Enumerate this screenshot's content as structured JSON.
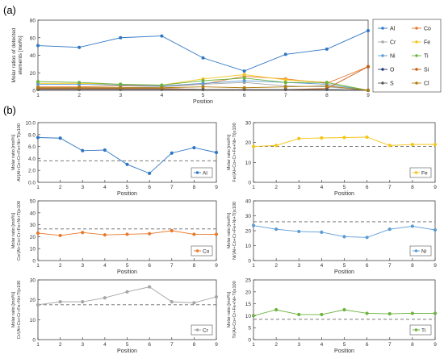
{
  "figure": {
    "panel_a_label": "(a)",
    "panel_b_label": "(b)"
  },
  "colors": {
    "Al": "#2f76c4",
    "Co": "#e8782b",
    "Cr": "#a6a6a6",
    "Fe": "#f5c518",
    "Ni": "#5b9bd5",
    "Ti": "#6cb33f",
    "O": "#1f3c6e",
    "Si": "#c55a11",
    "S": "#595959",
    "Cl": "#b07d10"
  },
  "chart_data": [
    {
      "type": "line",
      "panel": "a",
      "ylabel": "Molar ratios of detected elements [mol%]",
      "xlabel": "Position",
      "x": [
        1,
        2,
        3,
        4,
        5,
        6,
        7,
        8,
        9
      ],
      "xlim": [
        1,
        9
      ],
      "ylim": [
        0,
        80
      ],
      "yticks": [
        "0",
        "20",
        "40",
        "60",
        "80"
      ],
      "grid": false,
      "legend_position": "right",
      "series": [
        {
          "name": "Al",
          "key": "Al",
          "values": [
            51,
            49,
            60,
            62,
            37,
            22,
            41,
            47,
            68
          ]
        },
        {
          "name": "Co",
          "key": "Co",
          "values": [
            4,
            4,
            5,
            5,
            7,
            16,
            13,
            8,
            27
          ]
        },
        {
          "name": "Cr",
          "key": "Cr",
          "values": [
            3,
            3,
            3,
            4,
            7,
            9,
            5,
            4,
            0
          ]
        },
        {
          "name": "Fe",
          "key": "Fe",
          "values": [
            8,
            8,
            7,
            6,
            13,
            18,
            12,
            9,
            0
          ]
        },
        {
          "name": "Ni",
          "key": "Ni",
          "values": [
            7,
            7,
            6,
            5,
            8,
            11,
            9,
            7,
            0
          ]
        },
        {
          "name": "Ti",
          "key": "Ti",
          "values": [
            10,
            9,
            7,
            6,
            11,
            14,
            9,
            9,
            0
          ]
        },
        {
          "name": "O",
          "key": "O",
          "values": [
            2,
            2,
            2,
            2,
            1,
            1,
            1,
            1,
            0
          ]
        },
        {
          "name": "Si",
          "key": "Si",
          "values": [
            2,
            2,
            2,
            2,
            1,
            1,
            1,
            2,
            27
          ]
        },
        {
          "name": "S",
          "key": "S",
          "values": [
            1,
            1,
            1,
            1,
            1,
            1,
            1,
            1,
            0
          ]
        },
        {
          "name": "Cl",
          "key": "Cl",
          "values": [
            3,
            3,
            3,
            3,
            4,
            3,
            4,
            5,
            0
          ]
        }
      ]
    },
    {
      "type": "line",
      "panel": "b",
      "element": "Al",
      "key": "Al",
      "ylabel": "Molar ratio [mol%]",
      "ylabel2": "Al/(Al+Co+Cr+Fe+Ni+Ti)x100",
      "xlabel": "Position",
      "x": [
        1,
        2,
        3,
        4,
        5,
        6,
        7,
        8,
        9
      ],
      "xlim": [
        1,
        9
      ],
      "ylim": [
        0,
        10
      ],
      "yticks": [
        "0.0",
        "2.0",
        "4.0",
        "6.0",
        "8.0",
        "10.0"
      ],
      "reference": 3.6,
      "series": [
        {
          "name": "Al",
          "values": [
            7.5,
            7.4,
            5.3,
            5.4,
            3.0,
            1.5,
            4.9,
            5.8,
            5.0
          ]
        }
      ],
      "legend_position": "bottom-right"
    },
    {
      "type": "line",
      "panel": "b",
      "element": "Fe",
      "key": "Fe",
      "ylabel": "Molar ratio [mol%]",
      "ylabel2": "Fe/(Al+Co+Cr+Fe+Ni+Ti)x100",
      "xlabel": "Position",
      "x": [
        1,
        2,
        3,
        4,
        5,
        6,
        7,
        8,
        9
      ],
      "xlim": [
        1,
        9
      ],
      "ylim": [
        0,
        30
      ],
      "yticks": [
        "0",
        "10",
        "20",
        "30"
      ],
      "reference": 18.0,
      "series": [
        {
          "name": "Fe",
          "values": [
            18.0,
            18.5,
            22.0,
            22.3,
            22.5,
            22.7,
            18.5,
            19.0,
            19.0
          ]
        }
      ],
      "legend_position": "bottom-right"
    },
    {
      "type": "line",
      "panel": "b",
      "element": "Co",
      "key": "Co",
      "ylabel": "Molar ratio [mol%]",
      "ylabel2": "Co/(Al+Co+Cr+Fe+Ni+Ti)x100",
      "xlabel": "Position",
      "x": [
        1,
        2,
        3,
        4,
        5,
        6,
        7,
        8,
        9
      ],
      "xlim": [
        1,
        9
      ],
      "ylim": [
        0,
        50
      ],
      "yticks": [
        "0",
        "10",
        "20",
        "30",
        "40",
        "50"
      ],
      "reference": 26.5,
      "series": [
        {
          "name": "Co",
          "values": [
            23.0,
            21.0,
            23.5,
            21.5,
            22.0,
            22.5,
            25.0,
            22.0,
            22.0
          ]
        }
      ],
      "legend_position": "bottom-right"
    },
    {
      "type": "line",
      "panel": "b",
      "element": "Ni",
      "key": "Ni",
      "ylabel": "Molar ratio [mol%]",
      "ylabel2": "Ni/(Al+Co+Cr+Fe+Ni+Ti)x100",
      "xlabel": "Position",
      "x": [
        1,
        2,
        3,
        4,
        5,
        6,
        7,
        8,
        9
      ],
      "xlim": [
        1,
        9
      ],
      "ylim": [
        0,
        40
      ],
      "yticks": [
        "0",
        "10",
        "20",
        "30",
        "40"
      ],
      "reference": 26.0,
      "series": [
        {
          "name": "Ni",
          "values": [
            23.5,
            21.0,
            19.5,
            19.0,
            16.0,
            15.5,
            21.0,
            23.0,
            20.5
          ]
        }
      ],
      "legend_position": "bottom-right"
    },
    {
      "type": "line",
      "panel": "b",
      "element": "Cr",
      "key": "Cr",
      "ylabel": "Molar ratio [mol%]",
      "ylabel2": "Cr/(Al+Co+Cr+Fe+Ni+Ti)x100",
      "xlabel": "Position",
      "x": [
        1,
        2,
        3,
        4,
        5,
        6,
        7,
        8,
        9
      ],
      "xlim": [
        1,
        9
      ],
      "ylim": [
        0,
        30
      ],
      "yticks": [
        "0",
        "10",
        "20",
        "30"
      ],
      "reference": 17.5,
      "series": [
        {
          "name": "Cr",
          "values": [
            17.5,
            19.0,
            19.0,
            21.0,
            24.0,
            26.5,
            19.0,
            18.5,
            21.5
          ]
        }
      ],
      "legend_position": "bottom-right"
    },
    {
      "type": "line",
      "panel": "b",
      "element": "Ti",
      "key": "Ti",
      "ylabel": "Molar ratio [mol%]",
      "ylabel2": "Ti/(Al+Co+Cr+Fe+Ni+Ti)x100",
      "xlabel": "Position",
      "x": [
        1,
        2,
        3,
        4,
        5,
        6,
        7,
        8,
        9
      ],
      "xlim": [
        1,
        9
      ],
      "ylim": [
        0,
        25
      ],
      "yticks": [
        "0",
        "5",
        "10",
        "15",
        "20",
        "25"
      ],
      "reference": 8.5,
      "series": [
        {
          "name": "Ti",
          "values": [
            10.0,
            12.5,
            10.5,
            10.5,
            12.5,
            11.0,
            10.8,
            11.0,
            11.0
          ]
        }
      ],
      "legend_position": "bottom-right"
    }
  ]
}
